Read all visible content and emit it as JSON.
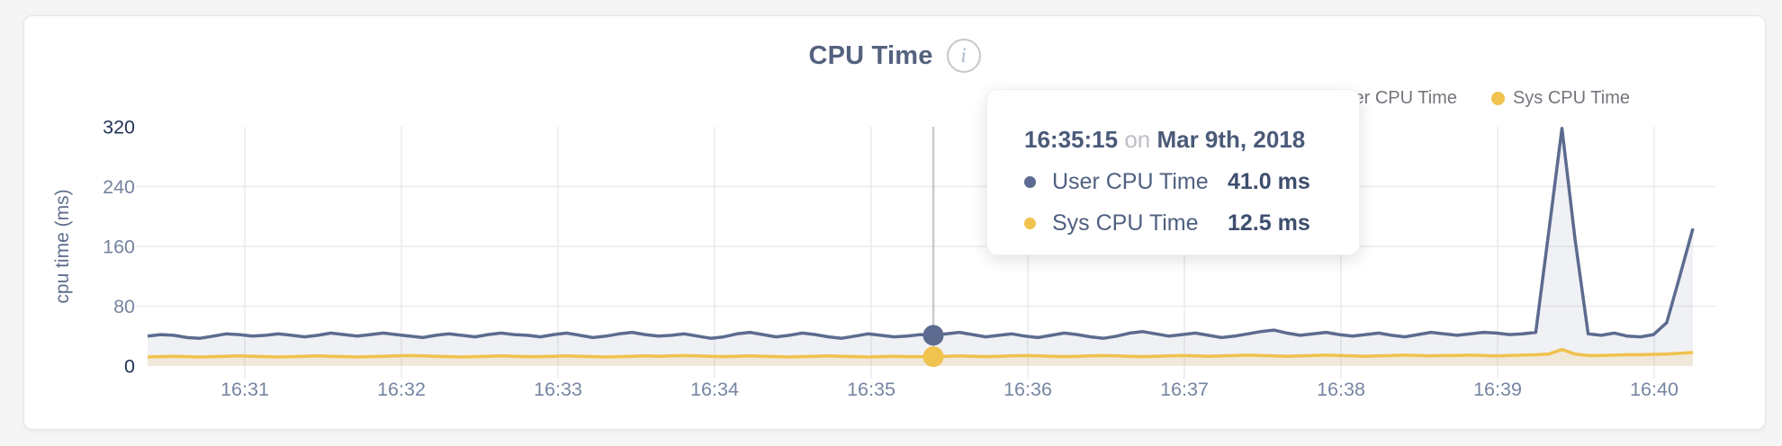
{
  "header": {
    "title": "CPU Time",
    "info_icon": "i"
  },
  "legend": {
    "items": [
      {
        "label": "User CPU Time",
        "color": "#5c6b8f"
      },
      {
        "label": "Sys CPU Time",
        "color": "#f0c24e"
      }
    ]
  },
  "tooltip": {
    "time": "16:35:15",
    "on_word": "on",
    "date": "Mar 9th, 2018",
    "rows": [
      {
        "label": "User CPU Time",
        "value": "41.0 ms",
        "color": "#5c6b8f"
      },
      {
        "label": "Sys CPU Time",
        "value": "12.5 ms",
        "color": "#f0c24e"
      }
    ]
  },
  "chart_data": {
    "type": "area",
    "title": "CPU Time",
    "ylabel": "cpu time (ms)",
    "ylim": [
      0,
      320
    ],
    "y_tick_labels": [
      "0",
      "80",
      "160",
      "240",
      "320"
    ],
    "y_tick_values": [
      0,
      80,
      160,
      240,
      320
    ],
    "x_tick_labels": [
      "16:31",
      "16:32",
      "16:33",
      "16:34",
      "16:35",
      "16:36",
      "16:37",
      "16:38",
      "16:39",
      "16:40"
    ],
    "grid": true,
    "legend_position": "top-right",
    "colors": {
      "user_line": "#5c6b8f",
      "sys_line": "#f0c24e",
      "user_fill": "rgba(105,117,148,0.10)",
      "sys_fill": "rgba(240,195,78,0.16)",
      "gridline": "#ececee",
      "crosshair": "#c9cacc",
      "tick_dark": "#1f3251",
      "tick_light": "#76849f",
      "x_tick": "#7585a2",
      "axis_title": "#5f6e8e"
    },
    "crosshair": {
      "index": 60,
      "time": "16:35:15",
      "user_value": 41.0,
      "sys_value": 12.5
    },
    "series": [
      {
        "name": "User CPU Time",
        "values": [
          40,
          42,
          41,
          38,
          37,
          40,
          43,
          42,
          40,
          41,
          43,
          41,
          39,
          41,
          44,
          42,
          40,
          42,
          44,
          42,
          40,
          38,
          41,
          43,
          41,
          39,
          42,
          44,
          42,
          41,
          39,
          42,
          44,
          41,
          38,
          40,
          43,
          45,
          42,
          40,
          41,
          43,
          40,
          37,
          39,
          43,
          45,
          42,
          39,
          41,
          44,
          42,
          39,
          37,
          40,
          43,
          41,
          39,
          40,
          42,
          41,
          43,
          45,
          42,
          39,
          41,
          43,
          40,
          38,
          41,
          44,
          42,
          39,
          37,
          40,
          44,
          46,
          43,
          40,
          42,
          44,
          41,
          38,
          40,
          43,
          46,
          48,
          44,
          41,
          43,
          45,
          42,
          40,
          42,
          44,
          41,
          39,
          42,
          45,
          43,
          41,
          43,
          45,
          44,
          42,
          43,
          45,
          180,
          318,
          170,
          43,
          41,
          44,
          40,
          39,
          42,
          58,
          120,
          184
        ]
      },
      {
        "name": "Sys CPU Time",
        "values": [
          12,
          12.5,
          13,
          12.5,
          12,
          12.5,
          13,
          13.5,
          13,
          12.5,
          12,
          12.5,
          13,
          13.5,
          13,
          12.5,
          12,
          12.5,
          13,
          13.5,
          14,
          13.5,
          13,
          12.5,
          12,
          12.5,
          13,
          13.5,
          13,
          12.5,
          12.5,
          13,
          13.5,
          13,
          12.5,
          12,
          12.5,
          13,
          13.5,
          13,
          13.5,
          14,
          13.5,
          13,
          12.5,
          13,
          13.5,
          13,
          12.5,
          12,
          12.5,
          13,
          13.5,
          13,
          12.5,
          12,
          12.5,
          13,
          12.5,
          12.5,
          12.5,
          13,
          13.5,
          13,
          12.5,
          13,
          13.5,
          14,
          13.5,
          13,
          12.5,
          13,
          13.5,
          14,
          13.5,
          13,
          12.5,
          13,
          13.5,
          14,
          13.5,
          13,
          13.5,
          14,
          14.5,
          14,
          13.5,
          13,
          13.5,
          14,
          14.5,
          14,
          13.5,
          13,
          13.5,
          14,
          14.5,
          14,
          13.5,
          14,
          14,
          14.5,
          14,
          13.5,
          14,
          14.5,
          15,
          16,
          22,
          16,
          14,
          14,
          14.5,
          15,
          15,
          15.5,
          16,
          17,
          18
        ]
      }
    ]
  }
}
